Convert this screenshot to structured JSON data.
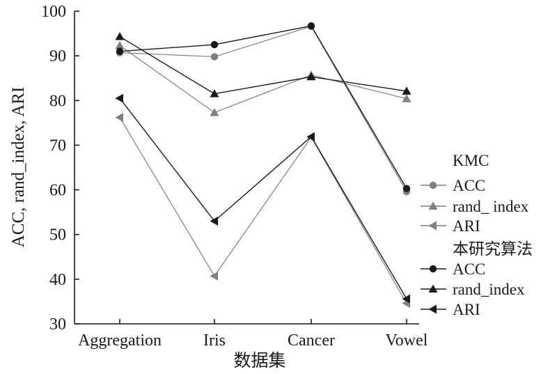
{
  "chart_data": {
    "type": "line",
    "categories": [
      "Aggregation",
      "Iris",
      "Cancer",
      "Vowel"
    ],
    "xlabel": "数据集",
    "ylabel": "ACC, rand_index, ARI",
    "ylim": [
      30,
      100
    ],
    "yticks": [
      30,
      40,
      50,
      60,
      70,
      80,
      90,
      100
    ],
    "grid": false,
    "legend_position": "right",
    "legend": [
      {
        "group": "KMC",
        "color": "#7f7f7f",
        "series": [
          {
            "name": "ACC",
            "marker": "circle",
            "values": [
              90.7,
              89.8,
              96.6,
              59.6
            ]
          },
          {
            "name": "rand_ index",
            "marker": "triangle-up",
            "values": [
              92.3,
              77.3,
              85.7,
              80.4
            ]
          },
          {
            "name": "ARI",
            "marker": "triangle-left",
            "values": [
              76.2,
              40.7,
              71.8,
              34.6
            ]
          }
        ]
      },
      {
        "group": "本研究算法",
        "color": "#1a1a1a",
        "series": [
          {
            "name": "ACC",
            "marker": "circle",
            "values": [
              91.0,
              92.5,
              96.7,
              60.3
            ]
          },
          {
            "name": "rand_index",
            "marker": "triangle-up",
            "values": [
              94.3,
              81.5,
              85.3,
              82.1
            ]
          },
          {
            "name": "ARI",
            "marker": "triangle-left",
            "values": [
              80.5,
              53.0,
              71.9,
              35.6
            ]
          }
        ]
      }
    ]
  }
}
